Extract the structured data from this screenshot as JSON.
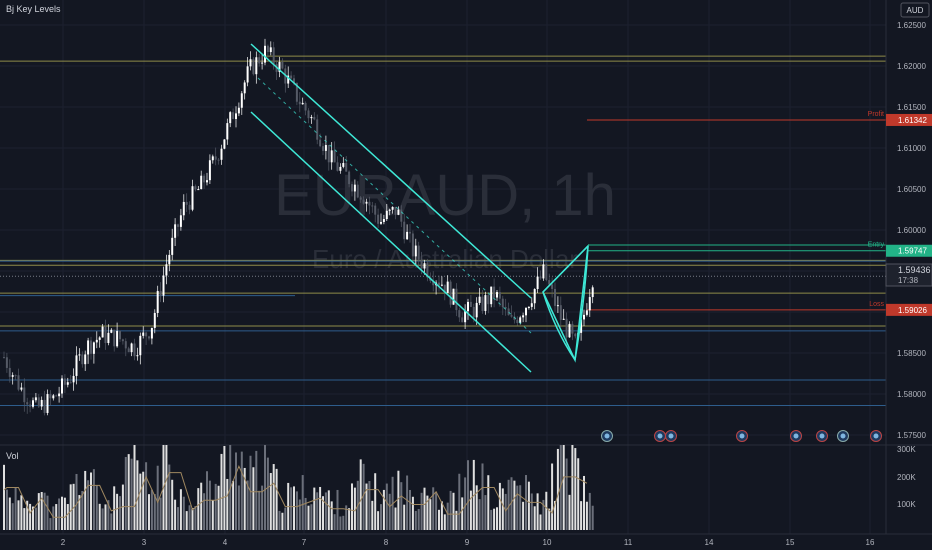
{
  "symbol": "EURAUD, 1h",
  "subtitle": "Euro / Australian Dollar",
  "indicator_label": "Bj Key Levels",
  "currency_label": "AUD",
  "volume_label": "Vol",
  "countdown": "17:38",
  "level_tags": {
    "profit": "Profit",
    "entry": "Entry",
    "loss": "Loss"
  },
  "colors": {
    "background": "#131722",
    "up_candle": "#ffffff",
    "down_candle": "#555a66",
    "channel": "#3ee8d6",
    "profit": "#c0392b",
    "entry": "#22b387",
    "loss": "#c0392b",
    "key_level_yellow": "#8f8c4a",
    "key_level_blue": "#2e5d8c"
  },
  "chart_data": {
    "type": "candlestick",
    "title": "EURAUD, 1h",
    "xlabel": "",
    "ylabel": "",
    "ylim": [
      1.5725,
      1.6275
    ],
    "price_ticks": [
      "1.62500",
      "1.62000",
      "1.61500",
      "1.61000",
      "1.60500",
      "1.60000",
      "1.59500",
      "1.59000",
      "1.58500",
      "1.58000",
      "1.57500"
    ],
    "x_tick_labels": [
      "2",
      "3",
      "4",
      "7",
      "8",
      "9",
      "10",
      "11",
      "14",
      "15",
      "16"
    ],
    "volume_ticks": [
      "300K",
      "200K",
      "100K"
    ],
    "current_price": "1.59436",
    "levels": [
      {
        "name": "Profit",
        "price": "1.61342",
        "value": 1.61342
      },
      {
        "name": "Entry",
        "price": "1.59747",
        "value": 1.59747
      },
      {
        "name": "Loss",
        "price": "1.59026",
        "value": 1.59026
      }
    ],
    "key_levels_yellow": [
      1.6212,
      1.6206,
      1.5963,
      1.5957,
      1.5923,
      1.5883
    ],
    "key_levels_blue": [
      1.5962,
      1.592,
      1.5877,
      1.5817,
      1.5786
    ],
    "price_path": [
      1.5845,
      1.5808,
      1.5782,
      1.5794,
      1.5818,
      1.5857,
      1.5872,
      1.5868,
      1.5856,
      1.5882,
      1.5965,
      1.6028,
      1.6052,
      1.609,
      1.6142,
      1.6195,
      1.6218,
      1.6195,
      1.616,
      1.613,
      1.6085,
      1.6065,
      1.6042,
      1.601,
      1.6025,
      1.5975,
      1.595,
      1.5932,
      1.5898,
      1.5905,
      1.5923,
      1.5886,
      1.5911,
      1.5948,
      1.5895,
      1.5857,
      1.5943
    ],
    "volume_path": [
      200,
      80,
      150,
      60,
      120,
      210,
      90,
      110,
      250,
      130,
      270,
      95,
      140,
      160,
      300,
      180,
      220,
      110,
      130,
      150,
      100,
      90,
      190,
      110,
      160,
      120,
      180,
      75,
      150,
      200,
      90,
      170,
      130,
      80,
      250,
      220,
      60
    ]
  }
}
